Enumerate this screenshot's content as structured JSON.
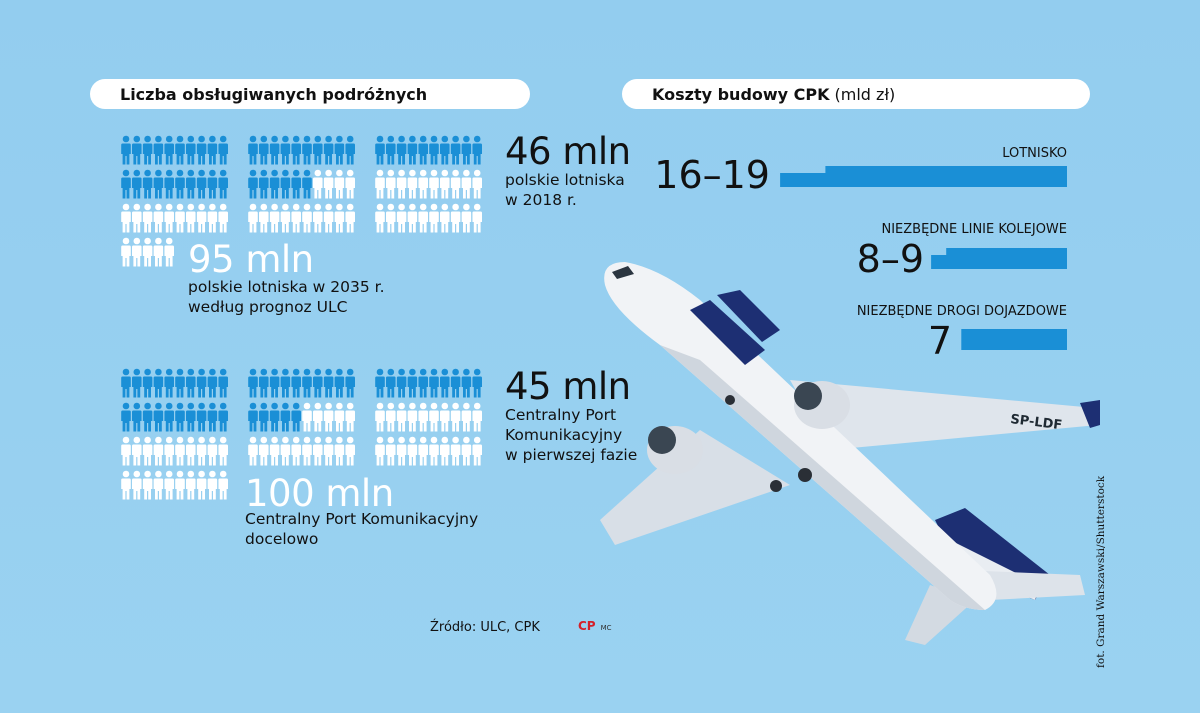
{
  "left_panel": {
    "title": "Liczba obsługiwanych podróżnych",
    "groups": [
      {
        "highlight_value": "46 mln",
        "highlight_desc": [
          "polskie lotniska",
          "w 2018 r."
        ],
        "total_value": "95 mln",
        "total_desc": [
          "polskie lotniska w 2035 r.",
          "według prognoz ULC"
        ]
      },
      {
        "highlight_value": "45 mln",
        "highlight_desc": [
          "Centralny Port",
          "Komunikacyjny",
          "w pierwszej fazie"
        ],
        "total_value": "100 mln",
        "total_desc": [
          "Centralny Port Komunikacyjny",
          "docelowo"
        ]
      }
    ]
  },
  "right_panel": {
    "title": "Koszty budowy CPK",
    "unit": "(mld zł)",
    "items": [
      {
        "label": "LOTNISKO",
        "value": "16–19"
      },
      {
        "label": "NIEZBĘDNE LINIE KOLEJOWE",
        "value": "8–9"
      },
      {
        "label": "NIEZBĘDNE DROGI DOJAZDOWE",
        "value": "7"
      }
    ]
  },
  "source": "Źródło: ULC, CPK",
  "logo": {
    "mark": "CP",
    "author": "MC"
  },
  "photo_credit": "fot. Grand Warszawski/Shutterstock",
  "plane_registration": "SP-LDF",
  "colors": {
    "background": "#96cff0",
    "bar": "#1a8fd6",
    "person_highlight": "#1a8fd6",
    "person_rest": "#ffffff"
  },
  "chart_data": [
    {
      "type": "bar",
      "title": "Koszty budowy CPK (mld zł)",
      "categories": [
        "LOTNISKO",
        "NIEZBĘDNE LINIE KOLEJOWE",
        "NIEZBĘDNE DROGI DOJAZDOWE"
      ],
      "ranges": [
        [
          16,
          19
        ],
        [
          8,
          9
        ],
        [
          7,
          7
        ]
      ],
      "orientation": "horizontal"
    },
    {
      "type": "pictograph",
      "title": "Liczba obsługiwanych podróżnych",
      "series": [
        {
          "name": "polskie lotniska",
          "highlighted": 46,
          "total": 95,
          "unit": "mln"
        },
        {
          "name": "Centralny Port Komunikacyjny",
          "highlighted": 45,
          "total": 100,
          "unit": "mln"
        }
      ]
    }
  ]
}
